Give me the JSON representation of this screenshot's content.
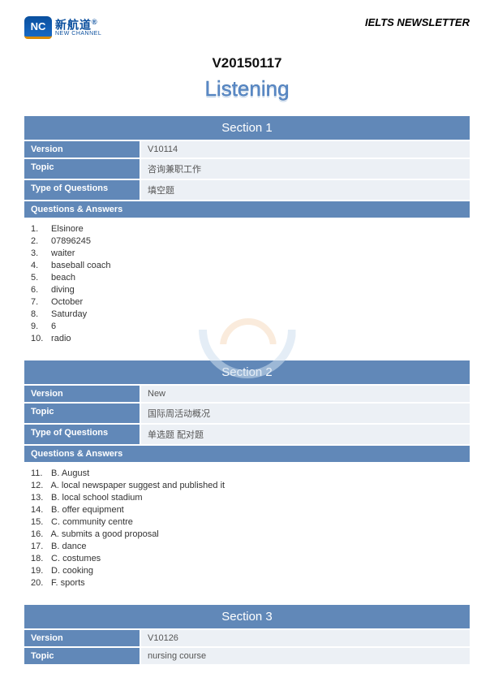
{
  "header": {
    "logo_badge": "NC",
    "logo_cn": "新航道",
    "logo_en": "NEW CHANNEL",
    "logo_reg": "®",
    "newsletter_title": "IELTS NEWSLETTER"
  },
  "doc_code": "V20150117",
  "listening_title": "Listening",
  "labels": {
    "version": "Version",
    "topic": "Topic",
    "type_of_questions": "Type of Questions",
    "qa": "Questions & Answers"
  },
  "sections": [
    {
      "title": "Section 1",
      "version": "V10114",
      "topic": "咨询兼职工作",
      "type_of_questions": "填空题",
      "answers": [
        {
          "n": "1.",
          "t": "Elsinore"
        },
        {
          "n": "2.",
          "t": "07896245"
        },
        {
          "n": "3.",
          "t": "waiter"
        },
        {
          "n": "4.",
          "t": "baseball coach"
        },
        {
          "n": "5.",
          "t": "beach"
        },
        {
          "n": "6.",
          "t": "diving"
        },
        {
          "n": "7.",
          "t": "October"
        },
        {
          "n": "8.",
          "t": "Saturday"
        },
        {
          "n": "9.",
          "t": "6"
        },
        {
          "n": "10.",
          "t": "radio"
        }
      ],
      "show_watermark": true
    },
    {
      "title": "Section 2",
      "version": "New",
      "topic": "国际周活动概况",
      "type_of_questions": "单选题  配对题",
      "answers": [
        {
          "n": "11.",
          "t": "B. August"
        },
        {
          "n": "12.",
          "t": "A. local newspaper suggest and published it"
        },
        {
          "n": "13.",
          "t": "B. local school stadium"
        },
        {
          "n": "14.",
          "t": "B. offer equipment"
        },
        {
          "n": "15.",
          "t": "C. community centre"
        },
        {
          "n": "16.",
          "t": "A. submits a good proposal"
        },
        {
          "n": "17.",
          "t": "B. dance"
        },
        {
          "n": "18.",
          "t": "C. costumes"
        },
        {
          "n": "19.",
          "t": "D. cooking"
        },
        {
          "n": "20.",
          "t": "F. sports"
        }
      ],
      "show_watermark": false
    },
    {
      "title": "Section 3",
      "version": "V10126",
      "topic": "nursing course",
      "type_of_questions": null,
      "answers": [],
      "show_watermark": false
    }
  ],
  "colors": {
    "section_bg": "#6188b8",
    "value_bg": "#ecf0f5",
    "listening_fill": "#5a8ac8"
  }
}
